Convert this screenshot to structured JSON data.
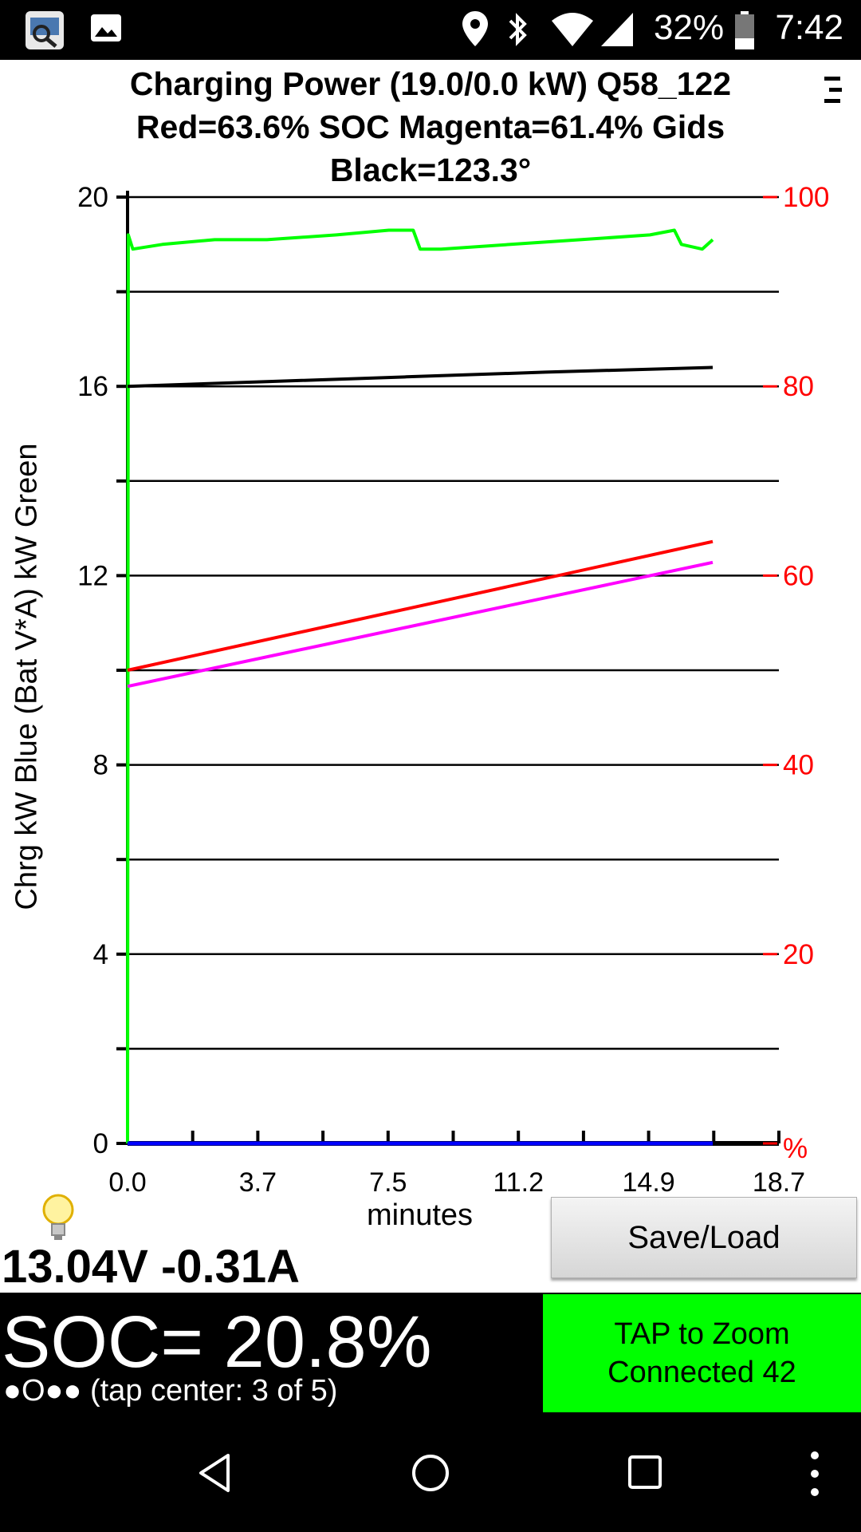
{
  "status_bar": {
    "battery_text": "32%",
    "clock": "7:42",
    "icons": [
      "app-icon",
      "image-icon",
      "location-icon",
      "bluetooth-icon",
      "wifi-icon",
      "cell-signal-icon",
      "battery-icon"
    ]
  },
  "header": {
    "title": "Charging Power (19.0/0.0 kW)    Q58_122",
    "line2": "Red=63.6% SOC     Magenta=61.4% Gids",
    "line3": "Black=123.3°"
  },
  "chart_data": {
    "type": "line",
    "ylabel": "Chrg kW Blue  (Bat V*A) kW Green",
    "xlabel": "minutes",
    "x_ticks": [
      "0.0",
      "3.7",
      "7.5",
      "11.2",
      "14.9",
      "18.7"
    ],
    "y_left_ticks": [
      "0",
      "4",
      "8",
      "12",
      "16",
      "20"
    ],
    "y_right_ticks": [
      "%",
      "20",
      "40",
      "60",
      "80",
      "100"
    ],
    "xlim": [
      0,
      18.7
    ],
    "ylim_left": [
      0,
      20
    ],
    "ylim_right": [
      0,
      100
    ],
    "grid": true,
    "series": [
      {
        "color": "#00ff00",
        "axis": "left",
        "points": [
          [
            0,
            0
          ],
          [
            0.02,
            19.2
          ],
          [
            0.15,
            18.9
          ],
          [
            1,
            19.0
          ],
          [
            2.5,
            19.1
          ],
          [
            4,
            19.1
          ],
          [
            6,
            19.2
          ],
          [
            7.5,
            19.3
          ],
          [
            8.2,
            19.3
          ],
          [
            8.4,
            18.9
          ],
          [
            9,
            18.9
          ],
          [
            11,
            19.0
          ],
          [
            13,
            19.1
          ],
          [
            15,
            19.2
          ],
          [
            15.7,
            19.3
          ],
          [
            15.9,
            19.0
          ],
          [
            16.5,
            18.9
          ],
          [
            16.8,
            19.1
          ]
        ]
      },
      {
        "color": "#000000",
        "axis": "left",
        "points": [
          [
            0,
            16.0
          ],
          [
            2,
            16.05
          ],
          [
            4,
            16.1
          ],
          [
            8,
            16.2
          ],
          [
            12,
            16.3
          ],
          [
            16.8,
            16.4
          ]
        ]
      },
      {
        "color": "#ff0000",
        "axis": "right",
        "points": [
          [
            0,
            50.0
          ],
          [
            16.8,
            63.6
          ]
        ]
      },
      {
        "color": "#ff00ff",
        "axis": "right",
        "points": [
          [
            0,
            48.3
          ],
          [
            16.8,
            61.4
          ]
        ]
      },
      {
        "color": "#0000ff",
        "axis": "left",
        "points": [
          [
            0,
            0
          ],
          [
            16.8,
            0
          ]
        ]
      }
    ]
  },
  "bottom": {
    "voltage_readout": "13.04V -0.31A",
    "save_load_label": "Save/Load",
    "soc_value": "SOC= 20.8%",
    "page_indicator": "●O●● (tap center: 3 of 5)",
    "zoom_line1": "TAP to Zoom",
    "zoom_line2": "Connected 42"
  },
  "navbar": {
    "icons": [
      "back-icon",
      "home-icon",
      "recents-icon",
      "overflow-menu-icon"
    ]
  }
}
